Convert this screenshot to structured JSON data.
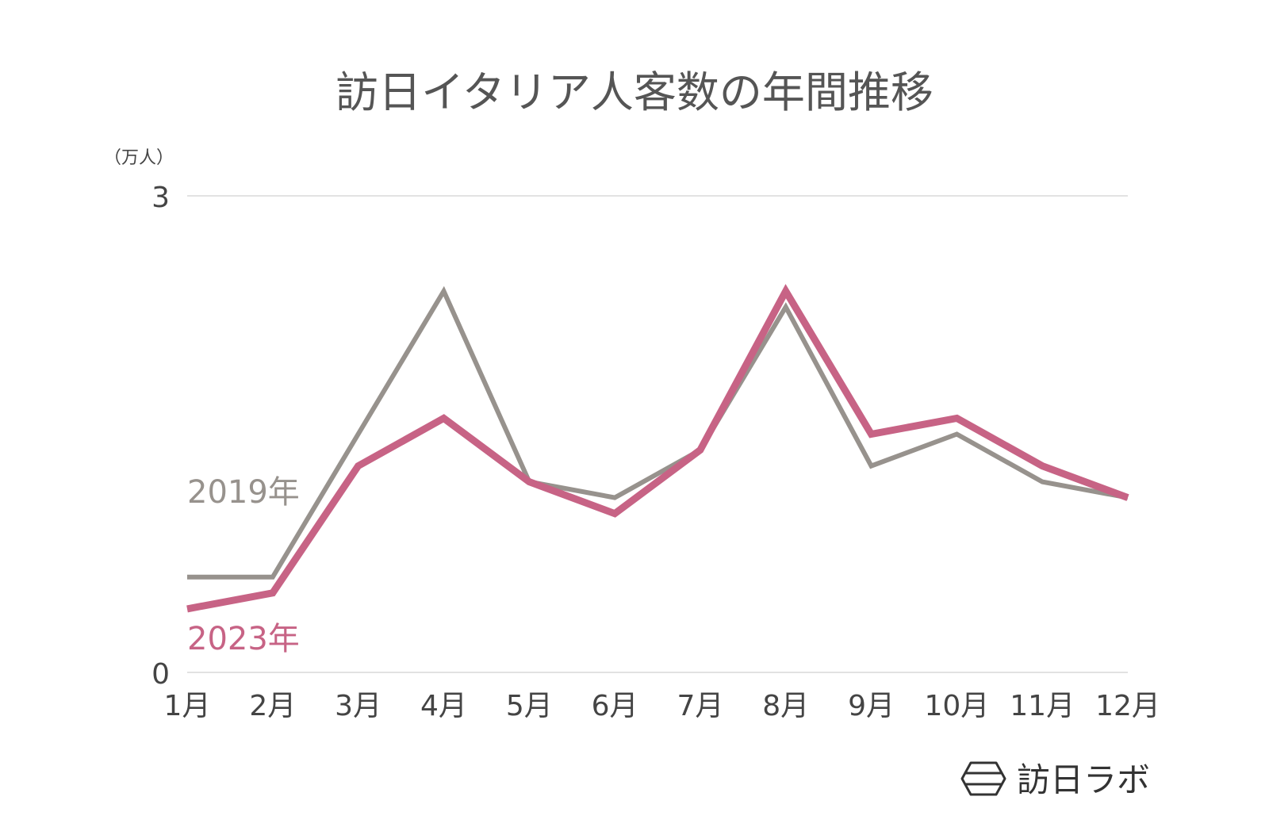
{
  "chart_data": {
    "type": "line",
    "title": "訪日イタリア人客数の年間推移",
    "unit": "（万人）",
    "categories": [
      "1月",
      "2月",
      "3月",
      "4月",
      "5月",
      "6月",
      "7月",
      "8月",
      "9月",
      "10月",
      "11月",
      "12月"
    ],
    "ylim": [
      0,
      3
    ],
    "yticks": [
      "0",
      "3"
    ],
    "grid": true,
    "series": [
      {
        "name": "2019年",
        "color": "#97928d",
        "values": [
          0.6,
          0.6,
          1.5,
          2.4,
          1.2,
          1.1,
          1.4,
          2.3,
          1.3,
          1.5,
          1.2,
          1.1
        ]
      },
      {
        "name": "2023年",
        "color": "#c76385",
        "values": [
          0.4,
          0.5,
          1.3,
          1.6,
          1.2,
          1.0,
          1.4,
          2.4,
          1.5,
          1.6,
          1.3,
          1.1
        ]
      }
    ]
  },
  "brand": {
    "name": "訪日ラボ",
    "icon": "hexagon-logo-icon"
  }
}
